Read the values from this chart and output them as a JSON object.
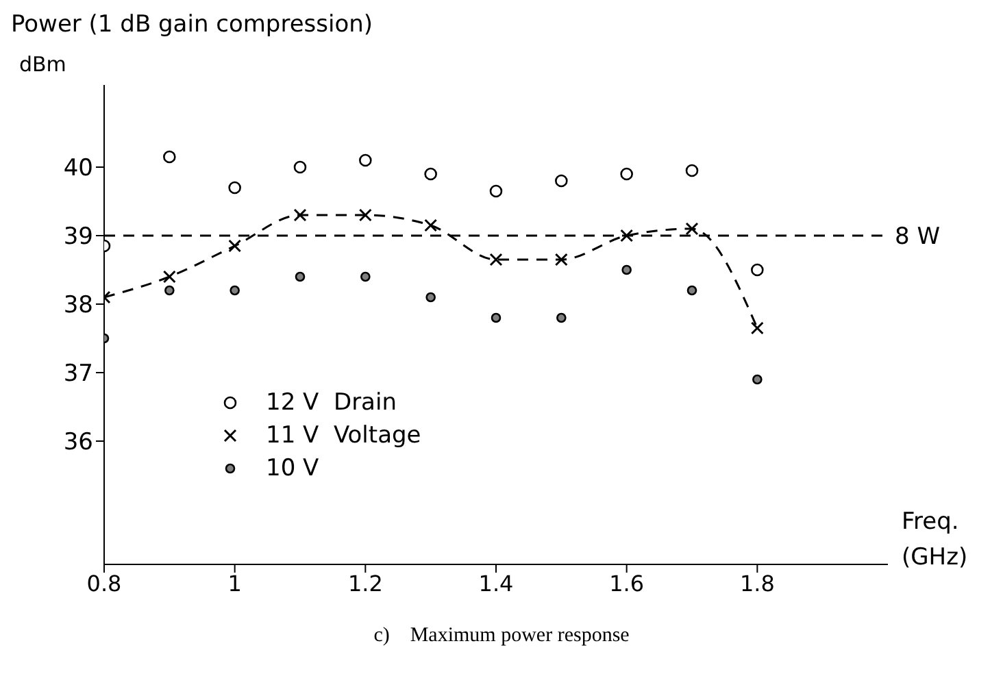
{
  "chart_data": {
    "type": "scatter",
    "title": "Power (1 dB gain compression)",
    "ylabel": "dBm",
    "xlabel": "Freq. (GHz)",
    "annotations": [
      "c)    Maximum power response"
    ],
    "x": [
      0.8,
      0.9,
      1.0,
      1.1,
      1.2,
      1.3,
      1.4,
      1.5,
      1.6,
      1.7,
      1.8
    ],
    "series": [
      {
        "name": "12 V  Drain",
        "type": "scatter",
        "marker": "circle",
        "color": "#ffffff",
        "values": [
          38.85,
          40.15,
          39.7,
          40.0,
          40.1,
          39.9,
          39.65,
          39.8,
          39.9,
          39.95,
          38.5
        ]
      },
      {
        "name": "11 V  Voltage",
        "type": "line",
        "marker": "cross",
        "line_style": "dashed",
        "color": "#000000",
        "values": [
          38.1,
          38.4,
          38.85,
          39.3,
          39.3,
          39.15,
          38.65,
          38.65,
          39.0,
          39.1,
          37.65
        ]
      },
      {
        "name": "10 V",
        "type": "scatter",
        "marker": "circle",
        "color": "#808080",
        "values": [
          37.5,
          38.2,
          38.2,
          38.4,
          38.4,
          38.1,
          37.8,
          37.8,
          38.5,
          38.2,
          36.9
        ]
      }
    ],
    "ref_lines": [
      {
        "axis": "y",
        "value": 39,
        "label": "8 W",
        "line_style": "dashed",
        "color": "#000000"
      }
    ],
    "xlim": [
      0.8,
      2.0
    ],
    "xticks": [
      0.8,
      {
        "value": 1,
        "label": "1"
      },
      1.2,
      1.4,
      1.6,
      1.8
    ],
    "ylim": [
      34.2,
      41.2
    ],
    "yticks": [
      36,
      37,
      38,
      39,
      40
    ],
    "grid": false,
    "legend": "bottom left"
  }
}
